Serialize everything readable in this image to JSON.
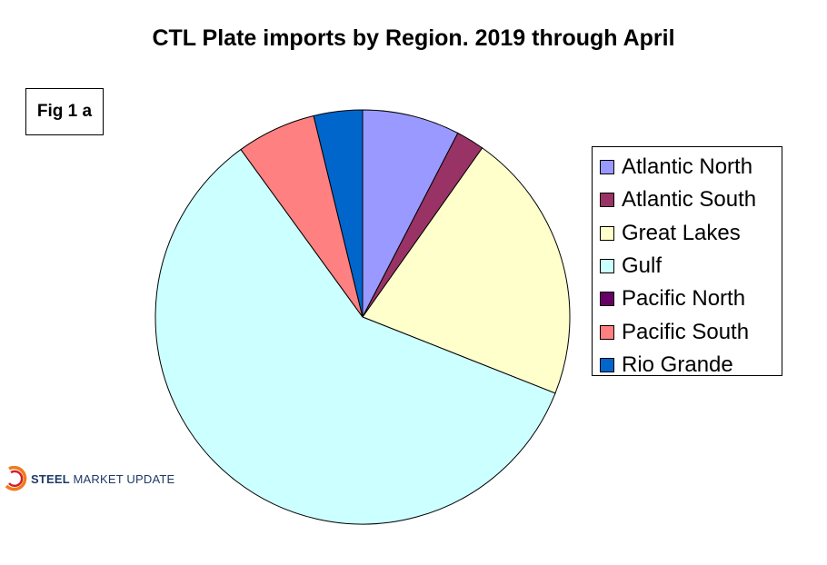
{
  "chart_data": {
    "type": "pie",
    "title": "CTL Plate imports by Region. 2019 through April",
    "categories": [
      "Atlantic North",
      "Atlantic South",
      "Great Lakes",
      "Gulf",
      "Pacific North",
      "Pacific South",
      "Rio Grande"
    ],
    "values": [
      7.6,
      2.2,
      21.2,
      59.0,
      0.0,
      6.2,
      3.8
    ],
    "unit": "percent of total (estimated)",
    "colors": [
      "#9999ff",
      "#993366",
      "#ffffcc",
      "#ccffff",
      "#660066",
      "#ff8080",
      "#0066cc"
    ],
    "start_angle": "12 o'clock",
    "direction": "clockwise",
    "legend_position": "right"
  },
  "figure_label": "Fig 1 a",
  "logo": {
    "text_bold": "STEEL",
    "text_rest": "MARKET UPDATE",
    "colors": {
      "text": "#1e3a68",
      "arc_outer": "#f07b1d",
      "arc_inner": "#d62027"
    }
  }
}
